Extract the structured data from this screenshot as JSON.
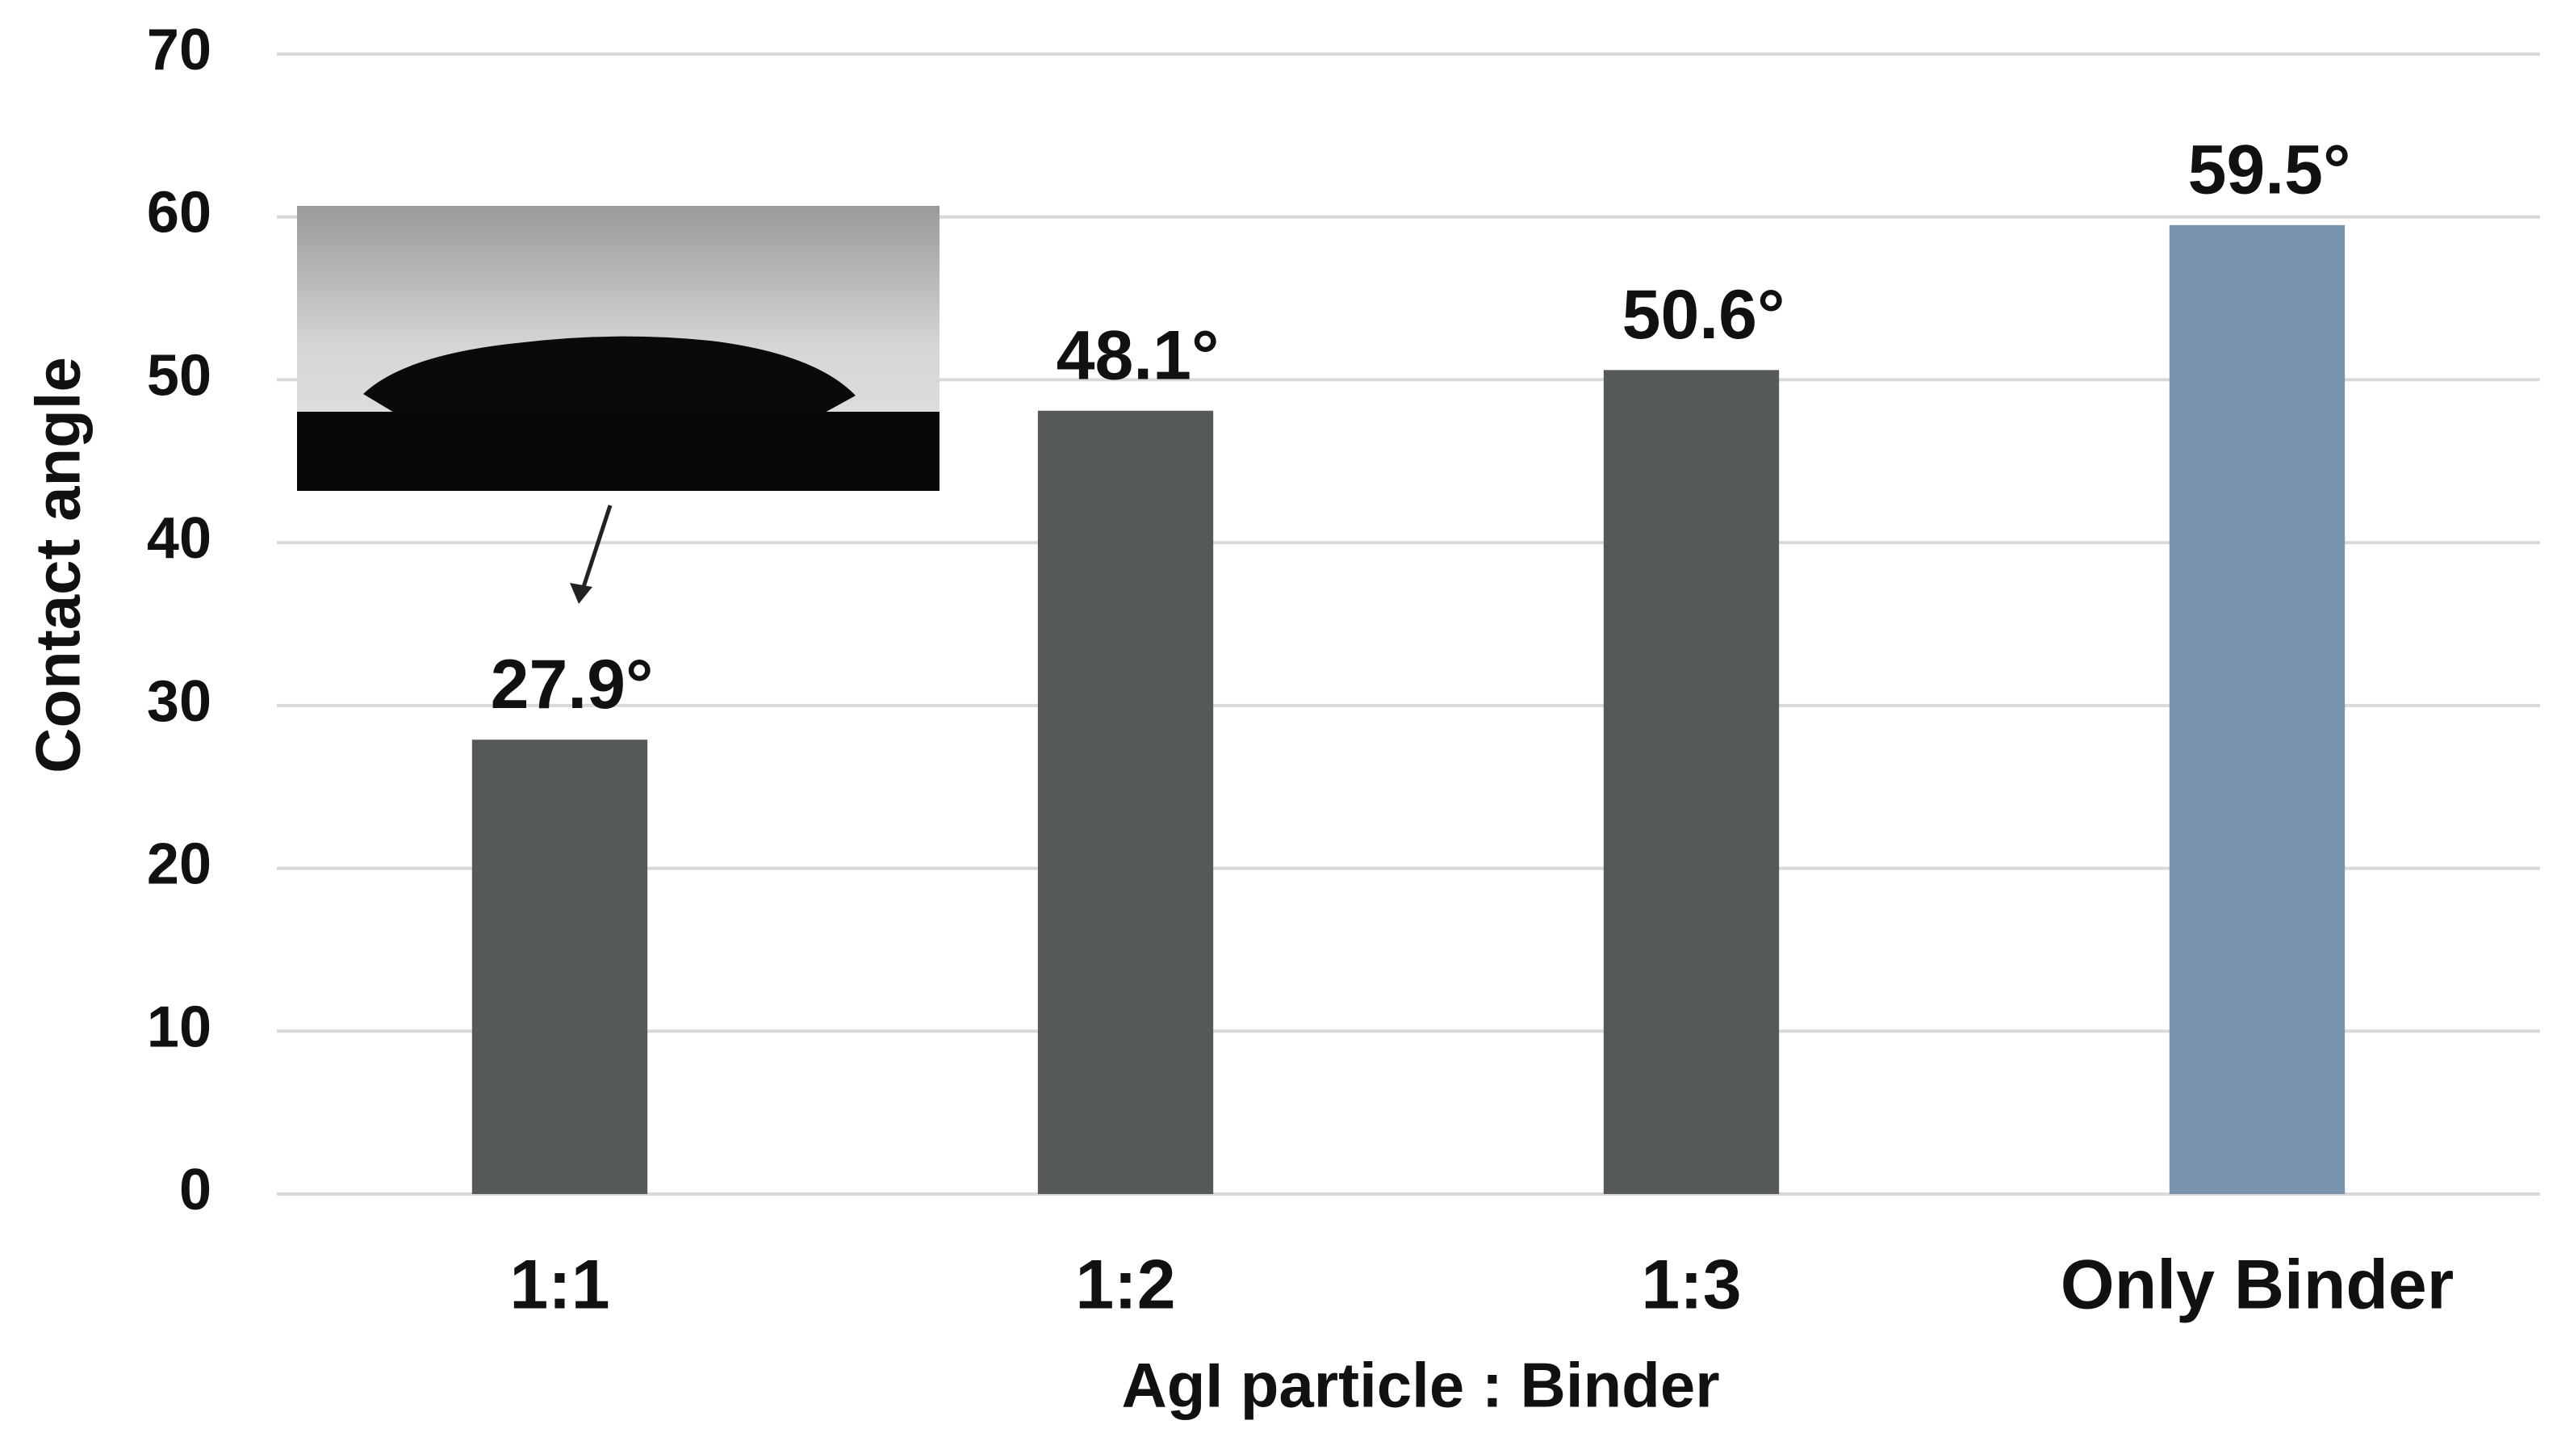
{
  "chart_data": {
    "type": "bar",
    "x_label": "AgI particle : Binder",
    "y_label": "Contact angle",
    "categories": [
      "1:1",
      "1:2",
      "1:3",
      "Only Binder"
    ],
    "values": [
      27.9,
      48.1,
      50.6,
      59.5
    ],
    "value_labels": [
      "27.9°",
      "48.1°",
      "50.6°",
      "59.5°"
    ],
    "colors": [
      "#555a59",
      "#555a59",
      "#555a59",
      "#7b94ad"
    ],
    "ylim": [
      0,
      70
    ],
    "yticks": [
      0,
      10,
      20,
      30,
      40,
      50,
      60,
      70
    ],
    "grid": true
  }
}
